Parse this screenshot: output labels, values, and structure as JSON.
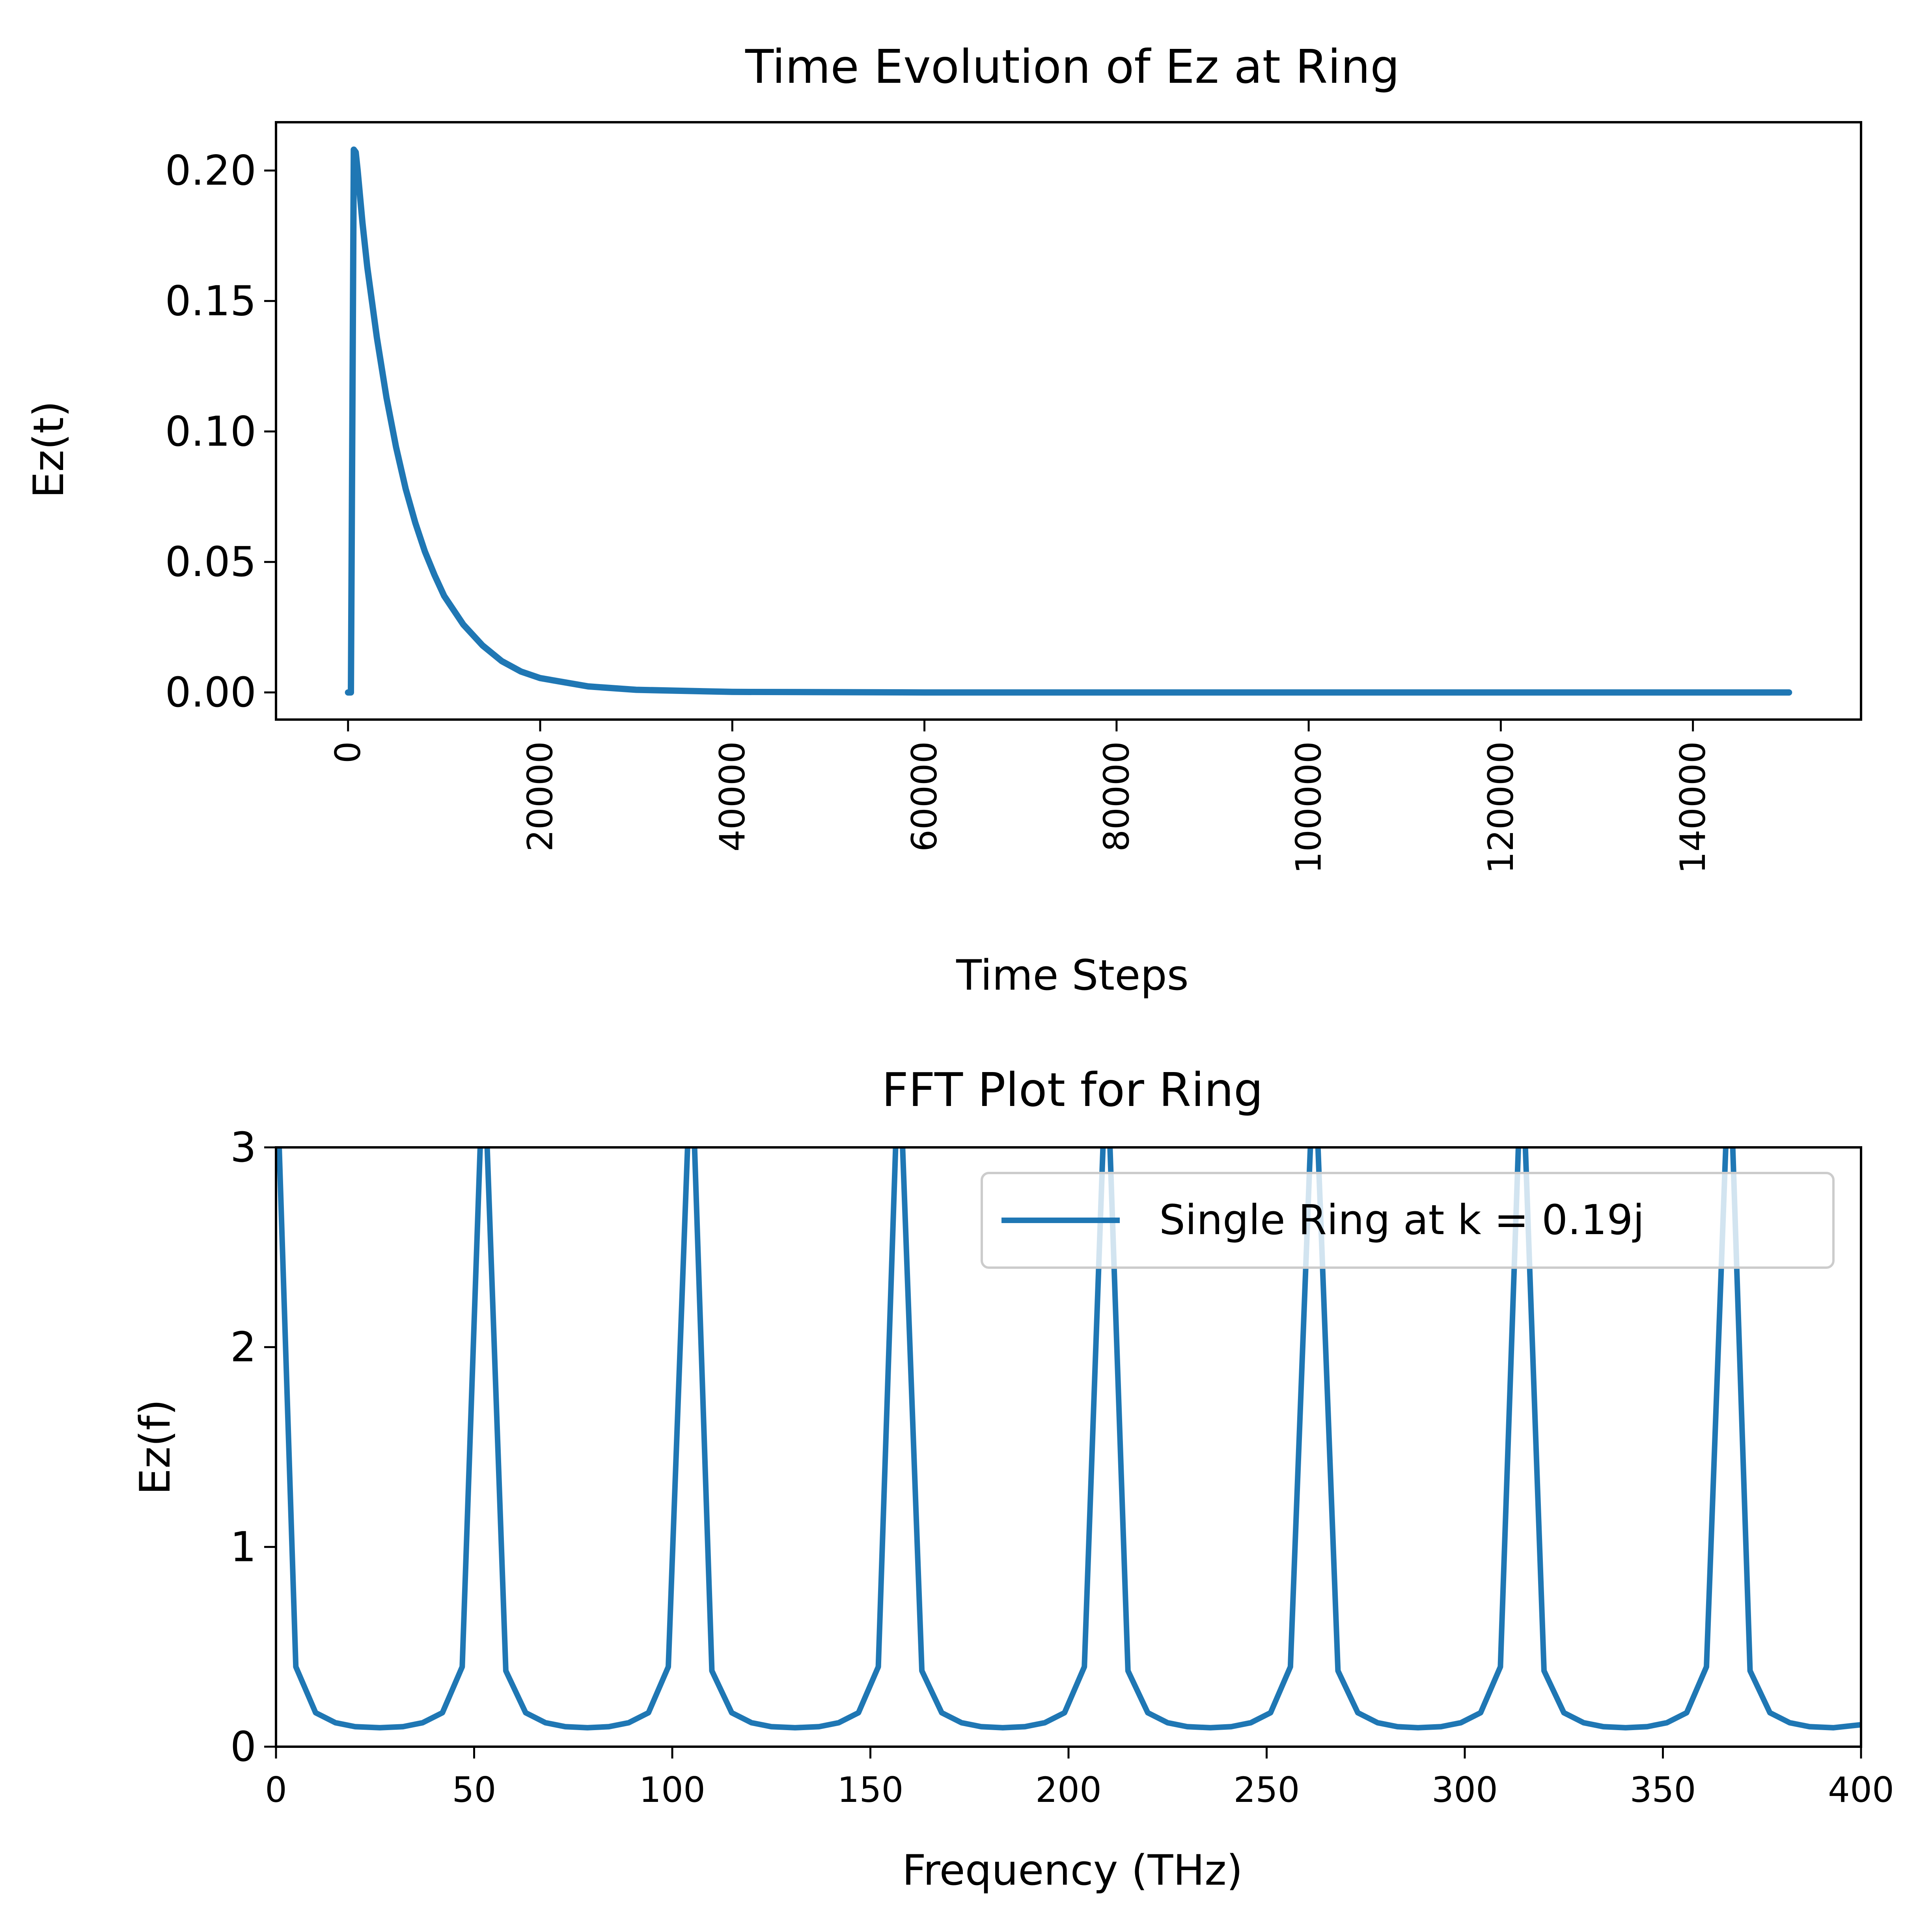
{
  "chart_data": [
    {
      "type": "line",
      "title": "Time Evolution of Ez at Ring",
      "xlabel": "Time Steps",
      "ylabel": "Ez(t)",
      "xlim": [
        -7500,
        157500
      ],
      "ylim": [
        -0.0104,
        0.2185
      ],
      "xticks": [
        0,
        20000,
        40000,
        60000,
        80000,
        100000,
        120000,
        140000
      ],
      "xtick_labels": [
        "0",
        "20000",
        "40000",
        "60000",
        "80000",
        "100000",
        "120000",
        "140000"
      ],
      "yticks": [
        0.0,
        0.05,
        0.1,
        0.15,
        0.2
      ],
      "ytick_labels": [
        "0.00",
        "0.05",
        "0.10",
        "0.15",
        "0.20"
      ],
      "grid": false,
      "series": [
        {
          "color": "#1f77b4",
          "x": [
            0,
            300,
            600,
            800,
            1000,
            1500,
            2000,
            3000,
            4000,
            5000,
            6000,
            7000,
            8000,
            9000,
            10000,
            12000,
            14000,
            16000,
            18000,
            20000,
            25000,
            30000,
            40000,
            60000,
            80000,
            100000,
            120000,
            140000,
            150000
          ],
          "y": [
            0.0,
            0.0,
            0.208,
            0.207,
            0.2,
            0.18,
            0.163,
            0.136,
            0.113,
            0.094,
            0.078,
            0.065,
            0.054,
            0.045,
            0.037,
            0.026,
            0.018,
            0.012,
            0.008,
            0.0055,
            0.0023,
            0.001,
            0.0002,
            0.0,
            0.0,
            0.0,
            0.0,
            0.0,
            0.0
          ]
        }
      ]
    },
    {
      "type": "line",
      "title": "FFT Plot for Ring",
      "xlabel": "Frequency (THz)",
      "ylabel": "Ez(f)",
      "xlim": [
        0,
        400
      ],
      "ylim": [
        0,
        3
      ],
      "xticks": [
        0,
        50,
        100,
        150,
        200,
        250,
        300,
        350,
        400
      ],
      "xtick_labels": [
        "0",
        "50",
        "100",
        "150",
        "200",
        "250",
        "300",
        "350",
        "400"
      ],
      "yticks": [
        0,
        1,
        2,
        3
      ],
      "ytick_labels": [
        "0",
        "1",
        "2",
        "3"
      ],
      "grid": false,
      "legend_position": "top-right",
      "peak_frequencies": [
        0,
        52.4,
        104.8,
        157.2,
        209.6,
        262.0,
        314.4,
        366.8
      ],
      "baseline_min": 0.095,
      "series": [
        {
          "name": "Single Ring at k = 0.19j",
          "color": "#1f77b4",
          "x": [
            0,
            5,
            10,
            15,
            20,
            26.2,
            32,
            37,
            42,
            47,
            52.4,
            58,
            63,
            68,
            73,
            78.6,
            84,
            89,
            94,
            99,
            104.8,
            110,
            115,
            120,
            125,
            131,
            137,
            142,
            147,
            152,
            157.2,
            163,
            168,
            173,
            178,
            183.4,
            189,
            194,
            199,
            204,
            209.6,
            215,
            220,
            225,
            230,
            235.8,
            241,
            246,
            251,
            256,
            262.0,
            268,
            273,
            278,
            283,
            288.2,
            294,
            299,
            304,
            309,
            314.4,
            320,
            325,
            330,
            335,
            340.6,
            346,
            351,
            356,
            361,
            366.8,
            372,
            377,
            382,
            387,
            393,
            400
          ],
          "y": [
            3.5,
            0.4,
            0.17,
            0.12,
            0.1,
            0.095,
            0.1,
            0.12,
            0.17,
            0.4,
            3.5,
            0.38,
            0.17,
            0.12,
            0.1,
            0.095,
            0.1,
            0.12,
            0.17,
            0.4,
            3.5,
            0.38,
            0.17,
            0.12,
            0.1,
            0.095,
            0.1,
            0.12,
            0.17,
            0.4,
            3.5,
            0.38,
            0.17,
            0.12,
            0.1,
            0.095,
            0.1,
            0.12,
            0.17,
            0.4,
            3.5,
            0.38,
            0.17,
            0.12,
            0.1,
            0.095,
            0.1,
            0.12,
            0.17,
            0.4,
            3.5,
            0.38,
            0.17,
            0.12,
            0.1,
            0.095,
            0.1,
            0.12,
            0.17,
            0.4,
            3.5,
            0.38,
            0.17,
            0.12,
            0.1,
            0.095,
            0.1,
            0.12,
            0.17,
            0.4,
            3.5,
            0.38,
            0.17,
            0.12,
            0.1,
            0.095,
            0.11
          ]
        }
      ]
    }
  ]
}
